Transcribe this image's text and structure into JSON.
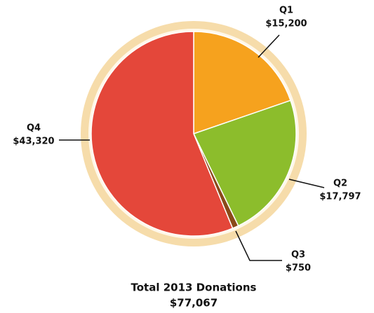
{
  "chart_data": {
    "type": "pie",
    "title": "Total  2013 Donations",
    "subtitle": "$77,067",
    "categories": [
      "Q1",
      "Q2",
      "Q3",
      "Q4"
    ],
    "values": [
      15200,
      17797,
      750,
      43320
    ],
    "value_labels": [
      "$15,200",
      "$17,797",
      "$750",
      "$43,320"
    ],
    "colors": [
      "#f6a21e",
      "#8cbd2c",
      "#8a4a1a",
      "#e4473a"
    ]
  }
}
